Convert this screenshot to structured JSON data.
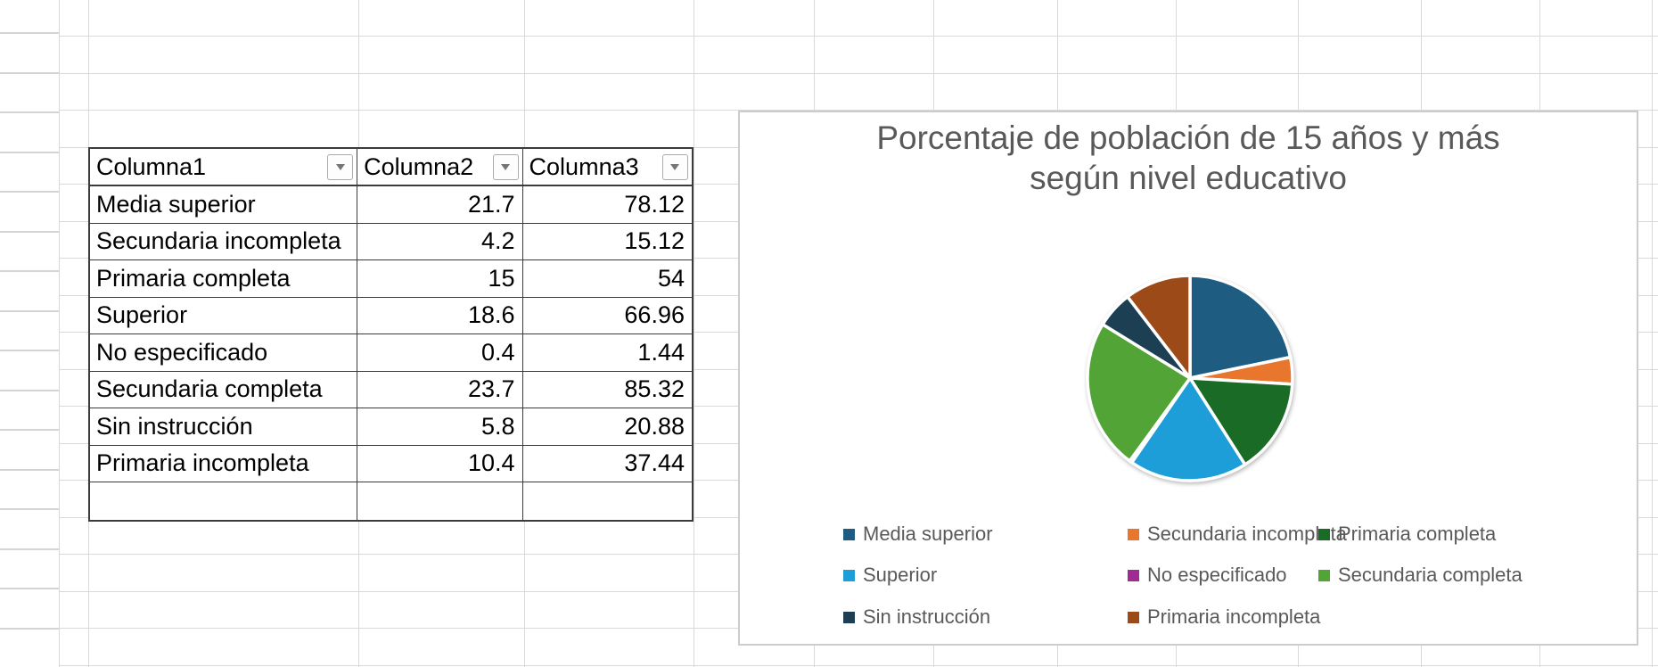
{
  "sheet": {
    "table": {
      "columns": [
        "Columna1",
        "Columna2",
        "Columna3"
      ],
      "rows": [
        [
          "Media superior",
          "21.7",
          "78.12"
        ],
        [
          "Secundaria incompleta",
          "4.2",
          "15.12"
        ],
        [
          "Primaria completa",
          "15",
          "54"
        ],
        [
          "Superior",
          "18.6",
          "66.96"
        ],
        [
          "No especificado",
          "0.4",
          "1.44"
        ],
        [
          "Secundaria completa",
          "23.7",
          "85.32"
        ],
        [
          "Sin instrucción",
          "5.8",
          "20.88"
        ],
        [
          "Primaria incompleta",
          "10.4",
          "37.44"
        ]
      ]
    }
  },
  "chart_data": {
    "type": "pie",
    "title": "Porcentaje de población de 15 años y más según nivel educativo",
    "categories": [
      "Media superior",
      "Secundaria incompleta",
      "Primaria completa",
      "Superior",
      "No especificado",
      "Secundaria completa",
      "Sin instrucción",
      "Primaria incompleta"
    ],
    "values": [
      21.7,
      4.2,
      15,
      18.6,
      0.4,
      23.7,
      5.8,
      10.4
    ],
    "colors": [
      "#1E5C82",
      "#E8762D",
      "#1A6B26",
      "#1E9ED8",
      "#A02B93",
      "#52A436",
      "#1D3F53",
      "#9C4A17"
    ],
    "start_angle_deg": 0,
    "direction": "clockwise",
    "slice_border_color": "#FFFFFF",
    "legend_position": "bottom",
    "title_color": "#595959",
    "legend_text_color": "#595959"
  }
}
